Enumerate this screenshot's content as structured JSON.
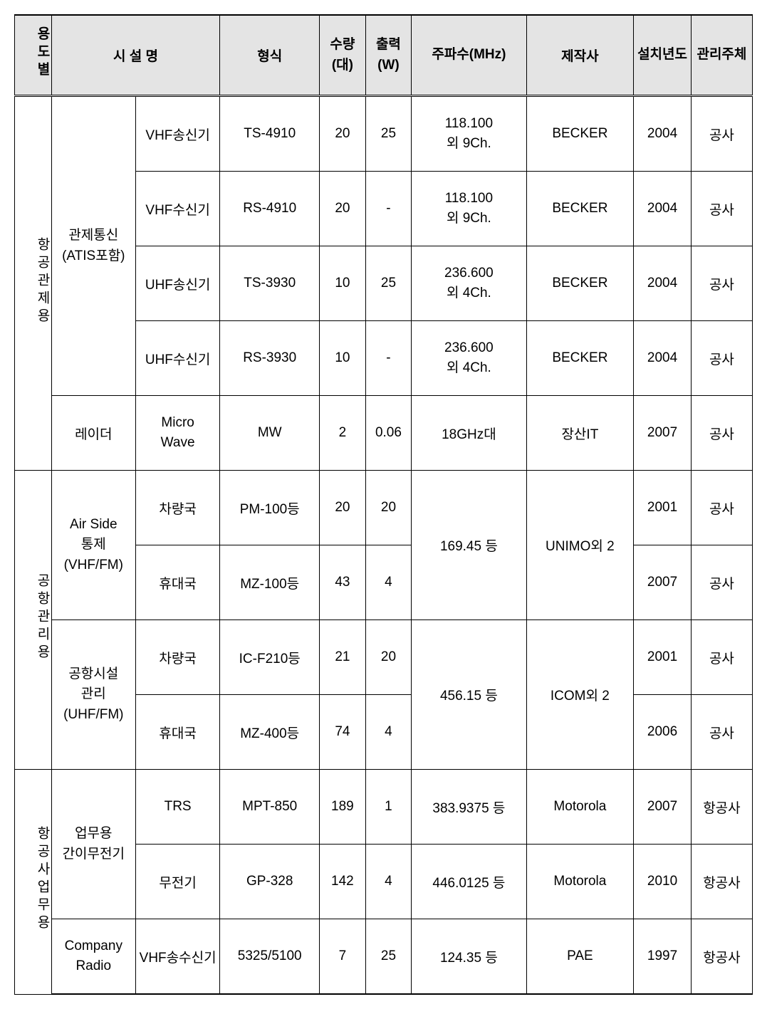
{
  "table": {
    "background_header": "#e4e4e4",
    "border_color": "#000000",
    "font_size": 19,
    "headers": {
      "category": "용도별",
      "facility": "시 설 명",
      "model": "형식",
      "qty": "수량(대)",
      "power": "출력(W)",
      "freq": "주파수(MHz)",
      "mfr": "제작사",
      "year": "설치년도",
      "owner": "관리주체"
    },
    "categories": [
      {
        "label": "항공관제용",
        "groups": [
          {
            "facility": "관제통신\n(ATIS포함)",
            "rows": [
              {
                "sub": "VHF송신기",
                "model": "TS-4910",
                "qty": "20",
                "power": "25",
                "freq": "118.100\n외 9Ch.",
                "mfr": "BECKER",
                "year": "2004",
                "owner": "공사"
              },
              {
                "sub": "VHF수신기",
                "model": "RS-4910",
                "qty": "20",
                "power": "-",
                "freq": "118.100\n외 9Ch.",
                "mfr": "BECKER",
                "year": "2004",
                "owner": "공사"
              },
              {
                "sub": "UHF송신기",
                "model": "TS-3930",
                "qty": "10",
                "power": "25",
                "freq": "236.600\n외 4Ch.",
                "mfr": "BECKER",
                "year": "2004",
                "owner": "공사"
              },
              {
                "sub": "UHF수신기",
                "model": "RS-3930",
                "qty": "10",
                "power": "-",
                "freq": "236.600\n외 4Ch.",
                "mfr": "BECKER",
                "year": "2004",
                "owner": "공사"
              }
            ]
          },
          {
            "facility": "레이더",
            "rows": [
              {
                "sub": "Micro\nWave",
                "model": "MW",
                "qty": "2",
                "power": "0.06",
                "freq": "18GHz대",
                "mfr": "장산IT",
                "year": "2007",
                "owner": "공사"
              }
            ]
          }
        ]
      },
      {
        "label": "공항관리용",
        "groups": [
          {
            "facility": "Air Side\n통제\n(VHF/FM)",
            "shared_freq": "169.45 등",
            "shared_mfr": "UNIMO외 2",
            "rows": [
              {
                "sub": "차량국",
                "model": "PM-100등",
                "qty": "20",
                "power": "20",
                "year": "2001",
                "owner": "공사"
              },
              {
                "sub": "휴대국",
                "model": "MZ-100등",
                "qty": "43",
                "power": "4",
                "year": "2007",
                "owner": "공사"
              }
            ]
          },
          {
            "facility": "공항시설\n관리\n(UHF/FM)",
            "shared_freq": "456.15 등",
            "shared_mfr": "ICOM외 2",
            "rows": [
              {
                "sub": "차량국",
                "model": "IC-F210등",
                "qty": "21",
                "power": "20",
                "year": "2001",
                "owner": "공사"
              },
              {
                "sub": "휴대국",
                "model": "MZ-400등",
                "qty": "74",
                "power": "4",
                "year": "2006",
                "owner": "공사"
              }
            ]
          }
        ]
      },
      {
        "label": "항공사업무용",
        "groups": [
          {
            "facility": "업무용\n간이무전기",
            "rows": [
              {
                "sub": "TRS",
                "model": "MPT-850",
                "qty": "189",
                "power": "1",
                "freq": "383.9375 등",
                "mfr": "Motorola",
                "year": "2007",
                "owner": "항공사"
              },
              {
                "sub": "무전기",
                "model": "GP-328",
                "qty": "142",
                "power": "4",
                "freq": "446.0125 등",
                "mfr": "Motorola",
                "year": "2010",
                "owner": "항공사"
              }
            ]
          },
          {
            "facility": "Company\nRadio",
            "rows": [
              {
                "sub": "VHF송수신기",
                "model": "5325/5100",
                "qty": "7",
                "power": "25",
                "freq": "124.35 등",
                "mfr": "PAE",
                "year": "1997",
                "owner": "항공사"
              }
            ]
          }
        ]
      }
    ]
  }
}
